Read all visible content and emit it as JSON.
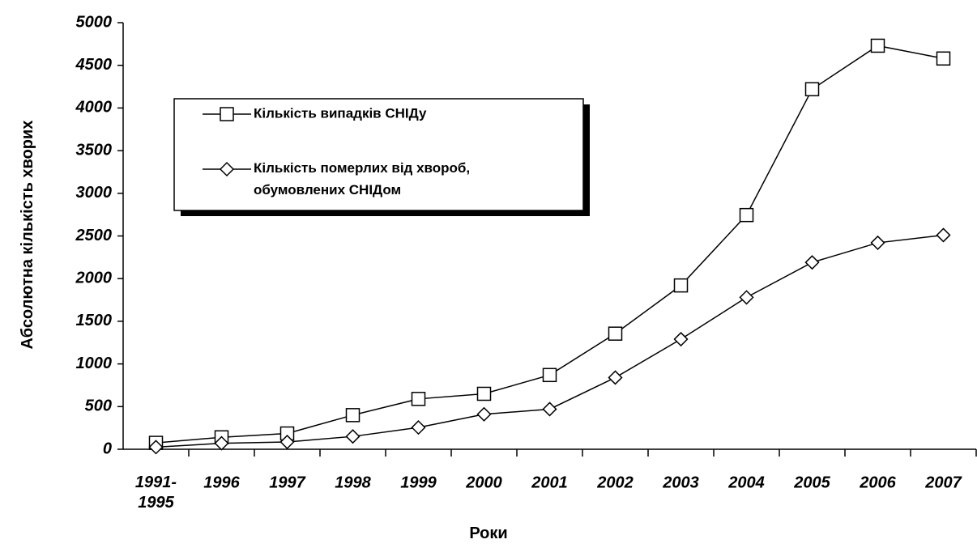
{
  "chart_data": {
    "type": "line",
    "x_label": "Роки",
    "y_label": "Абсолютна кількість хворих",
    "categories": [
      "1991-\n1995",
      "1996",
      "1997",
      "1998",
      "1999",
      "2000",
      "2001",
      "2002",
      "2003",
      "2004",
      "2005",
      "2006",
      "2007"
    ],
    "series": [
      {
        "name": "Кількість випадків СНІДу",
        "color": "#000000",
        "marker": "square",
        "values": [
          75,
          140,
          185,
          400,
          590,
          650,
          870,
          1355,
          1920,
          2745,
          4220,
          4730,
          4580
        ]
      },
      {
        "name": "Кількість померлих від хвороб,\nобумовлених СНІДом",
        "color": "#000000",
        "marker": "diamond",
        "values": [
          25,
          70,
          85,
          150,
          255,
          410,
          470,
          840,
          1290,
          1780,
          2190,
          2420,
          2510
        ]
      }
    ],
    "ylim": [
      0,
      5000
    ],
    "yticks": [
      0,
      500,
      1000,
      1500,
      2000,
      2500,
      3000,
      3500,
      4000,
      4500,
      5000
    ],
    "grid": false,
    "legend": "upper left"
  }
}
